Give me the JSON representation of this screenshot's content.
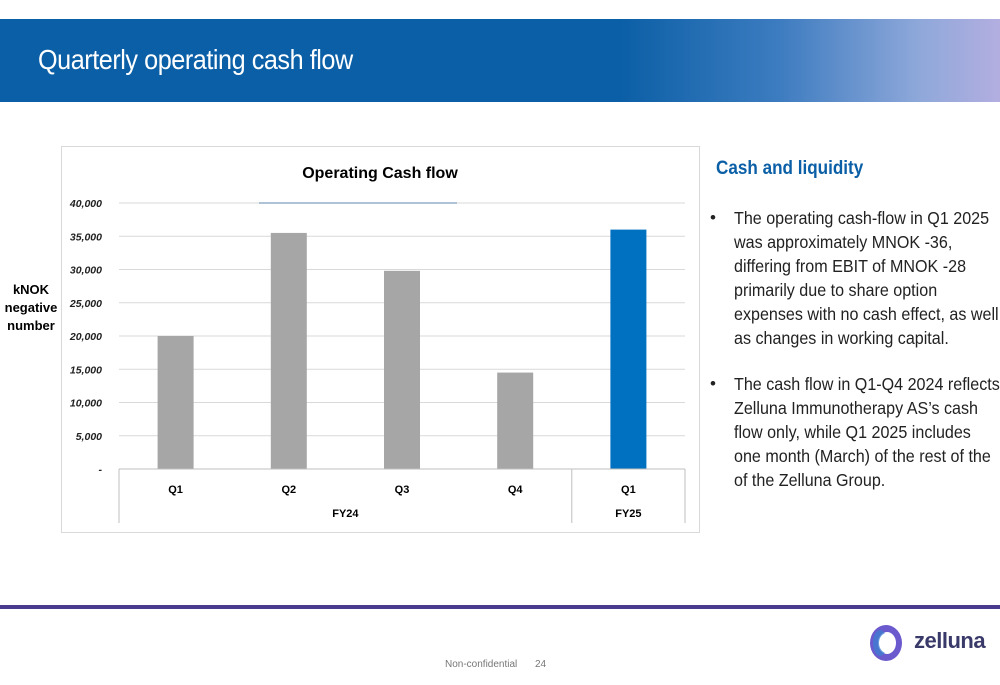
{
  "header": {
    "title": "Quarterly operating cash flow"
  },
  "y_axis_side_label": "kNOK negative number",
  "chart_data": {
    "type": "bar",
    "title": "Operating Cash flow",
    "xlabel": "",
    "ylabel": "kNOK negative number",
    "ylim": [
      0,
      40000
    ],
    "yticks": [
      0,
      5000,
      10000,
      15000,
      20000,
      25000,
      30000,
      35000,
      40000
    ],
    "ytick_labels": [
      "-",
      "5,000",
      "10,000",
      "15,000",
      "20,000",
      "25,000",
      "30,000",
      "35,000",
      "40,000"
    ],
    "categories": [
      "Q1",
      "Q2",
      "Q3",
      "Q4",
      "Q1"
    ],
    "groups": [
      {
        "label": "FY24",
        "count": 4
      },
      {
        "label": "FY25",
        "count": 1
      }
    ],
    "values": [
      20000,
      35500,
      29800,
      14500,
      36000
    ],
    "colors": [
      "#a6a6a6",
      "#a6a6a6",
      "#a6a6a6",
      "#a6a6a6",
      "#0070c0"
    ],
    "grid": true,
    "legend": "none"
  },
  "side": {
    "title": "Cash and liquidity",
    "bullets": [
      "The operating cash-flow in Q1 2025 was approximately MNOK -36, differing from EBIT of MNOK -28 primarily due to share option expenses with no cash effect, as well as changes in working capital.",
      "The cash flow in Q1-Q4 2024 reflects Zelluna Immunotherapy AS’s cash flow only, while Q1 2025 includes one month (March) of the rest of the of the Zelluna Group."
    ]
  },
  "footer": {
    "confidentiality": "Non-confidential",
    "page": "24",
    "logo_text": "zelluna"
  },
  "colors": {
    "header_blue": "#0b5fa6",
    "footer_purple": "#4b3b8f",
    "bar_gray": "#a6a6a6",
    "bar_blue": "#0070c0"
  }
}
